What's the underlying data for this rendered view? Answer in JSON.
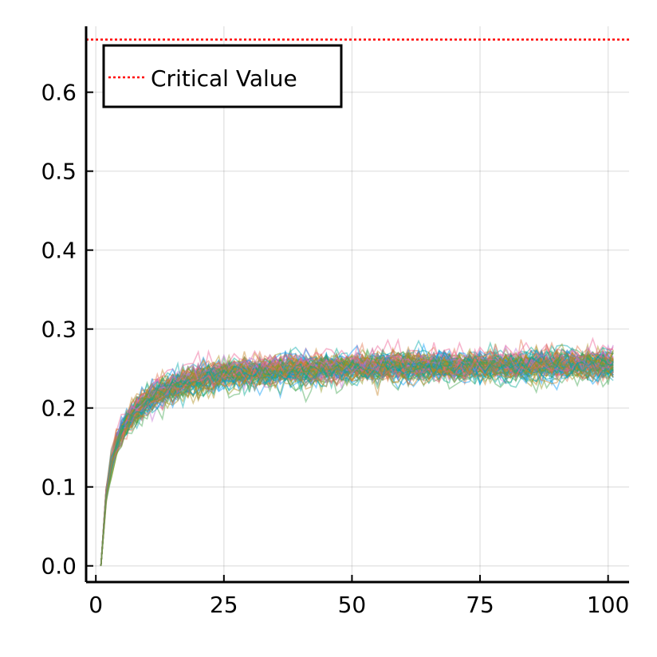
{
  "chart_data": {
    "type": "line",
    "title": "",
    "xlabel": "",
    "ylabel": "",
    "xlim": [
      -1.9,
      104.1
    ],
    "ylim": [
      -0.0205,
      0.6835
    ],
    "x_ticks": [
      0,
      25,
      50,
      75,
      100
    ],
    "x_tick_labels": [
      "0",
      "25",
      "50",
      "75",
      "100"
    ],
    "y_ticks": [
      0.0,
      0.1,
      0.2,
      0.3,
      0.4,
      0.5,
      0.6
    ],
    "y_tick_labels": [
      "0.0",
      "0.1",
      "0.2",
      "0.3",
      "0.4",
      "0.5",
      "0.6"
    ],
    "grid": true,
    "legend_position": "top-left",
    "simulated_band": {
      "x": [
        1,
        2,
        3,
        4,
        5,
        6,
        8,
        10,
        12,
        15,
        20,
        25,
        30,
        40,
        50,
        60,
        70,
        80,
        90,
        101
      ],
      "y_mean": [
        0.0,
        0.09,
        0.13,
        0.155,
        0.17,
        0.182,
        0.198,
        0.21,
        0.218,
        0.227,
        0.237,
        0.243,
        0.246,
        0.249,
        0.251,
        0.252,
        0.253,
        0.254,
        0.255,
        0.255
      ],
      "y_spread": [
        0.0,
        0.006,
        0.009,
        0.011,
        0.012,
        0.012,
        0.013,
        0.013,
        0.013,
        0.013,
        0.013,
        0.013,
        0.013,
        0.013,
        0.013,
        0.013,
        0.013,
        0.013,
        0.013,
        0.013
      ],
      "n_lines": 90,
      "colors": [
        "#009af9",
        "#e26f46",
        "#3da44d",
        "#c271d2",
        "#ac8e18",
        "#00a9ad",
        "#ed5e93",
        "#c68225",
        "#00a98d",
        "#8e971d"
      ]
    },
    "series": [
      {
        "name": "Critical Value",
        "style": "dotted",
        "color": "#ff0000",
        "y": 0.6667
      }
    ]
  }
}
